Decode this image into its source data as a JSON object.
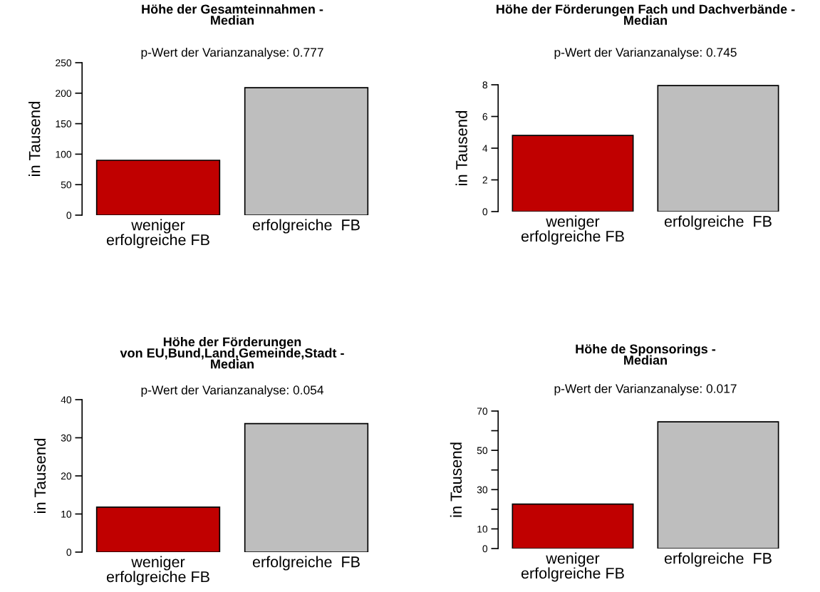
{
  "chart_data": [
    {
      "type": "bar",
      "title": "Höhe der Gesamteinnahmen -\nMedian",
      "subtitle": "p-Wert der Varianzanalyse: 0.777",
      "ylabel": "in Tausend",
      "categories": [
        "weniger\nerfolgreiche FB",
        "erfolgreiche  FB"
      ],
      "values": [
        90,
        209
      ],
      "colors": [
        "#c00000",
        "#bebebe"
      ],
      "ylim": [
        0,
        250
      ],
      "yticks": [
        0,
        50,
        100,
        150,
        200,
        250
      ],
      "grid": false,
      "legend": false
    },
    {
      "type": "bar",
      "title": "Höhe der Förderungen Fach und Dachverbände -\nMedian",
      "subtitle": "p-Wert der Varianzanalyse: 0.745",
      "ylabel": "in Tausend",
      "categories": [
        "weniger\nerfolgreiche FB",
        "erfolgreiche  FB"
      ],
      "values": [
        4.8,
        7.95
      ],
      "colors": [
        "#c00000",
        "#bebebe"
      ],
      "ylim": [
        0,
        8
      ],
      "yticks": [
        0,
        2,
        4,
        6,
        8
      ],
      "grid": false,
      "legend": false
    },
    {
      "type": "bar",
      "title": "Höhe der Förderungen\nvon EU,Bund,Land,Gemeinde,Stadt -\nMedian",
      "subtitle": "p-Wert der Varianzanalyse: 0.054",
      "ylabel": "in Tausend",
      "categories": [
        "weniger\nerfolgreiche FB",
        "erfolgreiche  FB"
      ],
      "values": [
        11.8,
        33.7
      ],
      "colors": [
        "#c00000",
        "#bebebe"
      ],
      "ylim": [
        0,
        40
      ],
      "yticks": [
        0,
        10,
        20,
        30,
        40
      ],
      "grid": false,
      "legend": false
    },
    {
      "type": "bar",
      "title": "Höhe de Sponsorings -\nMedian",
      "subtitle": "p-Wert der Varianzanalyse: 0.017",
      "ylabel": "in Tausend",
      "categories": [
        "weniger\nerfolgreiche FB",
        "erfolgreiche  FB"
      ],
      "values": [
        22.6,
        64.5
      ],
      "colors": [
        "#c00000",
        "#bebebe"
      ],
      "ylim": [
        0,
        70
      ],
      "yticks": [
        0,
        10,
        {
          "value": 20,
          "label": null
        },
        30,
        {
          "value": 40,
          "label": null
        },
        50,
        {
          "value": 60,
          "label": null
        },
        70
      ],
      "grid": false,
      "legend": false
    }
  ]
}
